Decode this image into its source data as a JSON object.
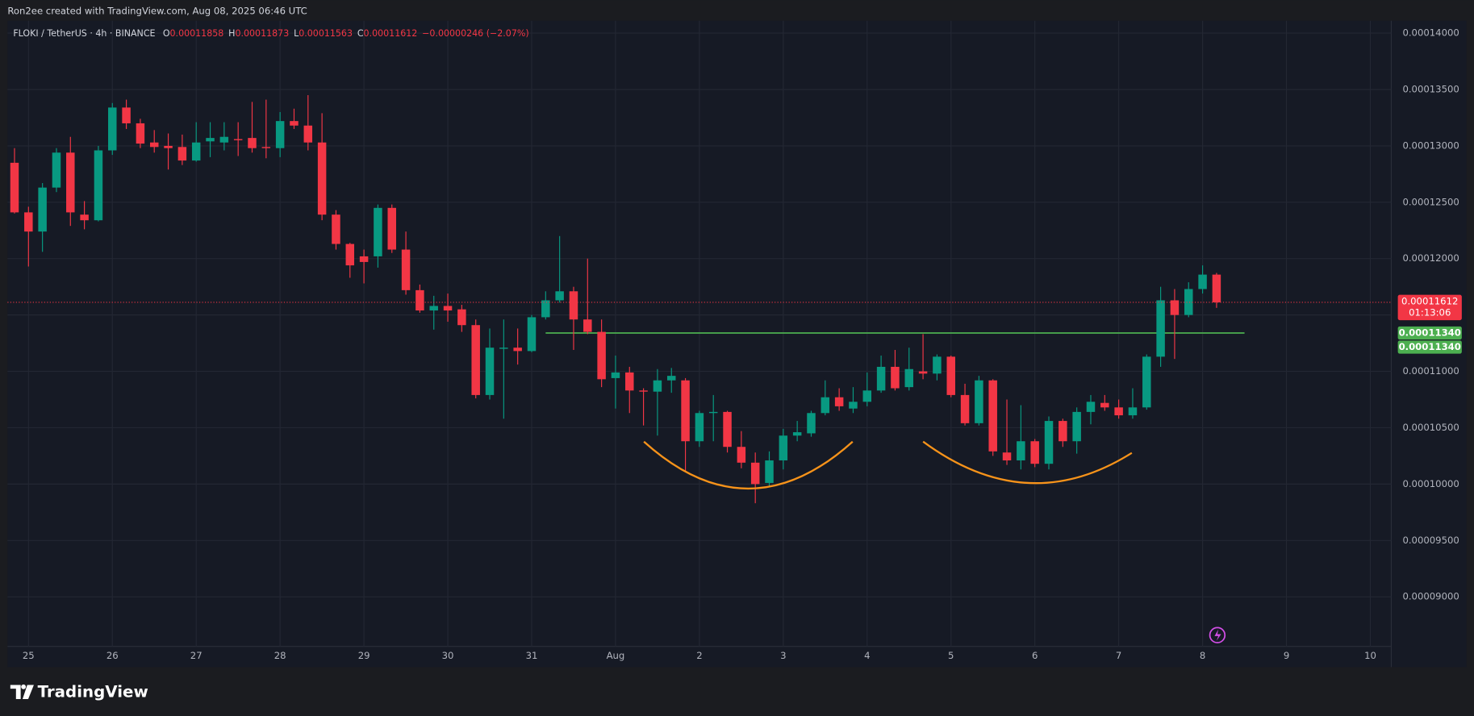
{
  "attribution": "Ron2ee created with TradingView.com, Aug 08, 2025 06:46 UTC",
  "brand": "TradingView",
  "chart_data": {
    "type": "candlestick",
    "title": "FLOKI / TetherUS · 4h · BINANCE",
    "ohlc_labels": [
      "O",
      "H",
      "L",
      "C"
    ],
    "change": "−0.00000246 (−2.07%)",
    "countdown": "01:13:06",
    "up_color": "#089981",
    "down_color": "#f23645",
    "grid": true,
    "x": [
      -4,
      0,
      4,
      8,
      12,
      16,
      20,
      24,
      28,
      32,
      36,
      40,
      44,
      48,
      52,
      56,
      60,
      64,
      68,
      72,
      76,
      80,
      84,
      88,
      92,
      96,
      100,
      104,
      108,
      112,
      116,
      120,
      124,
      128,
      132,
      136,
      140,
      144,
      148,
      152,
      156,
      160,
      164,
      168,
      172,
      176,
      180,
      184,
      188,
      192,
      196,
      200,
      204,
      208,
      212,
      216,
      220,
      224,
      228,
      232,
      236,
      240,
      244,
      248,
      252,
      256,
      260,
      264,
      268,
      272,
      276,
      280,
      284,
      288,
      292,
      296,
      300,
      304,
      308,
      312,
      316,
      320,
      324,
      328,
      332,
      336,
      340
    ],
    "open": [
      0.0001285,
      0.0001241,
      0.0001224,
      0.0001263,
      0.0001294,
      0.0001239,
      0.0001234,
      0.0001296,
      0.0001334,
      0.000132,
      0.0001303,
      0.00013,
      0.0001299,
      0.0001287,
      0.0001304,
      0.0001303,
      0.0001306,
      0.0001307,
      0.0001299,
      0.0001298,
      0.0001322,
      0.0001318,
      0.0001303,
      0.0001239,
      0.0001213,
      0.0001202,
      0.0001202,
      0.0001245,
      0.0001208,
      0.0001172,
      0.0001154,
      0.0001158,
      0.0001155,
      0.0001141,
      0.0001079,
      0.000112,
      0.0001121,
      0.0001118,
      0.0001148,
      0.0001163,
      0.0001171,
      0.0001146,
      0.0001135,
      0.0001094,
      0.0001099,
      0.0001083,
      0.0001082,
      0.0001092,
      0.0001092,
      0.0001038,
      0.0001063,
      0.0001064,
      0.0001033,
      0.0001019,
      0.0001001,
      0.0001021,
      0.0001043,
      0.0001045,
      0.0001063,
      0.0001077,
      0.0001067,
      0.0001073,
      0.0001083,
      0.0001104,
      0.0001086,
      0.00011,
      0.0001098,
      0.0001113,
      0.0001079,
      0.0001054,
      0.0001092,
      0.0001028,
      0.0001021,
      0.0001038,
      0.0001018,
      0.0001056,
      0.0001038,
      0.0001064,
      0.0001072,
      0.0001068,
      0.0001061,
      0.0001068,
      0.0001113,
      0.0001163,
      0.000115,
      0.0001173,
      0.00011858
    ],
    "high": [
      0.0001298,
      0.0001246,
      0.0001267,
      0.0001298,
      0.0001308,
      0.0001251,
      0.00013,
      0.0001338,
      0.0001341,
      0.0001324,
      0.0001314,
      0.0001311,
      0.000131,
      0.0001321,
      0.0001321,
      0.0001321,
      0.0001321,
      0.0001339,
      0.0001341,
      0.000133,
      0.0001333,
      0.0001345,
      0.0001329,
      0.0001243,
      0.0001214,
      0.0001208,
      0.0001248,
      0.0001248,
      0.0001224,
      0.0001177,
      0.0001167,
      0.0001169,
      0.0001159,
      0.0001146,
      0.0001138,
      0.0001146,
      0.0001138,
      0.000115,
      0.0001171,
      0.000122,
      0.0001175,
      0.00012,
      0.0001146,
      0.0001114,
      0.0001104,
      0.0001085,
      0.0001102,
      0.0001103,
      0.0001094,
      0.0001065,
      0.0001079,
      0.0001065,
      0.0001047,
      0.0001028,
      0.0001029,
      0.0001049,
      0.0001056,
      0.0001065,
      0.0001092,
      0.0001085,
      0.0001086,
      0.0001099,
      0.0001114,
      0.0001119,
      0.0001121,
      0.0001133,
      0.0001115,
      0.0001114,
      0.0001089,
      0.0001096,
      0.0001093,
      0.0001075,
      0.000107,
      0.000104,
      0.000106,
      0.0001058,
      0.0001068,
      0.0001079,
      0.0001079,
      0.0001075,
      0.0001085,
      0.0001115,
      0.0001175,
      0.0001173,
      0.0001179,
      0.0001194,
      0.00011873
    ],
    "low": [
      0.000124,
      0.0001193,
      0.0001206,
      0.0001259,
      0.0001229,
      0.0001226,
      0.0001233,
      0.0001292,
      0.0001315,
      0.0001298,
      0.0001294,
      0.0001279,
      0.0001283,
      0.0001286,
      0.000129,
      0.0001296,
      0.0001291,
      0.0001294,
      0.0001289,
      0.000129,
      0.0001315,
      0.0001296,
      0.0001234,
      0.0001208,
      0.0001183,
      0.0001178,
      0.0001192,
      0.0001205,
      0.0001168,
      0.0001152,
      0.0001137,
      0.0001144,
      0.0001135,
      0.0001076,
      0.0001075,
      0.0001058,
      0.0001106,
      0.0001117,
      0.0001146,
      0.0001161,
      0.0001119,
      0.0001133,
      0.0001086,
      0.0001067,
      0.0001063,
      0.0001052,
      0.0001043,
      0.0001081,
      0.0001011,
      0.0001033,
      0.0001038,
      0.0001028,
      0.0001014,
      9.83e-05,
      9.98e-05,
      0.0001013,
      0.0001038,
      0.0001042,
      0.0001061,
      0.0001065,
      0.0001063,
      0.0001069,
      0.0001081,
      0.0001083,
      0.0001083,
      0.0001093,
      0.0001092,
      0.0001077,
      0.0001052,
      0.0001052,
      0.0001025,
      0.0001017,
      0.0001013,
      0.0001015,
      0.0001013,
      0.0001033,
      0.0001027,
      0.0001053,
      0.0001065,
      0.0001058,
      0.0001058,
      0.0001066,
      0.0001104,
      0.0001111,
      0.0001148,
      0.0001169,
      0.00011563
    ],
    "close": [
      0.0001241,
      0.0001224,
      0.0001263,
      0.0001294,
      0.0001241,
      0.0001234,
      0.0001296,
      0.0001334,
      0.000132,
      0.0001302,
      0.0001299,
      0.0001298,
      0.0001287,
      0.0001303,
      0.0001307,
      0.0001308,
      0.0001305,
      0.0001298,
      0.0001298,
      0.0001322,
      0.0001318,
      0.0001303,
      0.0001239,
      0.0001213,
      0.0001194,
      0.0001197,
      0.0001245,
      0.0001208,
      0.0001172,
      0.0001154,
      0.0001158,
      0.0001154,
      0.0001141,
      0.0001079,
      0.0001121,
      0.0001121,
      0.0001118,
      0.0001148,
      0.0001163,
      0.0001171,
      0.0001146,
      0.0001135,
      0.0001093,
      0.0001099,
      0.0001083,
      0.0001082,
      0.0001092,
      0.0001096,
      0.0001038,
      0.0001063,
      0.0001064,
      0.0001033,
      0.0001019,
      0.0001,
      0.0001021,
      0.0001043,
      0.0001046,
      0.0001063,
      0.0001077,
      0.0001069,
      0.0001073,
      0.0001083,
      0.0001104,
      0.0001085,
      0.0001102,
      0.0001098,
      0.0001113,
      0.0001079,
      0.0001054,
      0.0001092,
      0.0001029,
      0.0001021,
      0.0001038,
      0.0001018,
      0.0001056,
      0.0001038,
      0.0001064,
      0.0001073,
      0.0001068,
      0.0001061,
      0.0001068,
      0.0001113,
      0.0001163,
      0.000115,
      0.0001173,
      0.00011858,
      0.00011612
    ],
    "xlim": [
      -6,
      390
    ],
    "ylim": [
      8.56e-05,
      0.0001411
    ],
    "xticks": [
      {
        "value": 0,
        "label": "25"
      },
      {
        "value": 24,
        "label": "26"
      },
      {
        "value": 48,
        "label": "27"
      },
      {
        "value": 72,
        "label": "28"
      },
      {
        "value": 96,
        "label": "29"
      },
      {
        "value": 120,
        "label": "30"
      },
      {
        "value": 144,
        "label": "31"
      },
      {
        "value": 168,
        "label": "Aug"
      },
      {
        "value": 192,
        "label": "2"
      },
      {
        "value": 216,
        "label": "3"
      },
      {
        "value": 240,
        "label": "4"
      },
      {
        "value": 264,
        "label": "5"
      },
      {
        "value": 288,
        "label": "6"
      },
      {
        "value": 312,
        "label": "7"
      },
      {
        "value": 336,
        "label": "8"
      },
      {
        "value": 360,
        "label": "9"
      },
      {
        "value": 384,
        "label": "10"
      }
    ],
    "yticks": [
      {
        "value": 0.00014,
        "label": "0.00014000"
      },
      {
        "value": 0.000135,
        "label": "0.00013500"
      },
      {
        "value": 0.00013,
        "label": "0.00013000"
      },
      {
        "value": 0.000125,
        "label": "0.00012500"
      },
      {
        "value": 0.00012,
        "label": "0.00012000"
      },
      {
        "value": 0.000115,
        "label": "0.00011500"
      },
      {
        "value": 0.00011,
        "label": "0.00011000"
      },
      {
        "value": 0.000105,
        "label": "0.00010500"
      },
      {
        "value": 0.0001,
        "label": "0.00010000"
      },
      {
        "value": 9.5e-05,
        "label": "0.00009500"
      },
      {
        "value": 9e-05,
        "label": "0.00009000"
      }
    ],
    "level": {
      "value": 0.0001134,
      "label": "0.00011340",
      "color": "#4caf50",
      "x": [
        148,
        348
      ]
    }
  }
}
